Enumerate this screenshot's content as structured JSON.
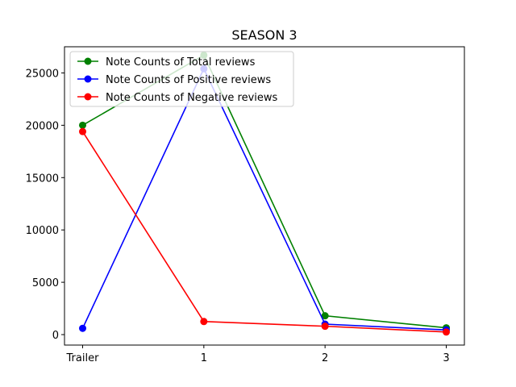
{
  "chart_data": {
    "type": "line",
    "title": "SEASON 3",
    "xlabel": "",
    "ylabel": "",
    "categories": [
      "Trailer",
      "1",
      "2",
      "3"
    ],
    "ylim": [
      -1000,
      27500
    ],
    "yticks": [
      0,
      5000,
      10000,
      15000,
      20000,
      25000
    ],
    "grid": false,
    "legend_position": "top-left",
    "series": [
      {
        "name": "Note Counts of Total reviews",
        "color": "#008000",
        "values": [
          20000,
          26700,
          1800,
          650
        ]
      },
      {
        "name": "Note Counts of Positive reviews",
        "color": "#0000ff",
        "values": [
          600,
          25400,
          1000,
          450
        ]
      },
      {
        "name": "Note Counts of Negative reviews",
        "color": "#ff0000",
        "values": [
          19400,
          1250,
          800,
          250
        ]
      }
    ]
  }
}
